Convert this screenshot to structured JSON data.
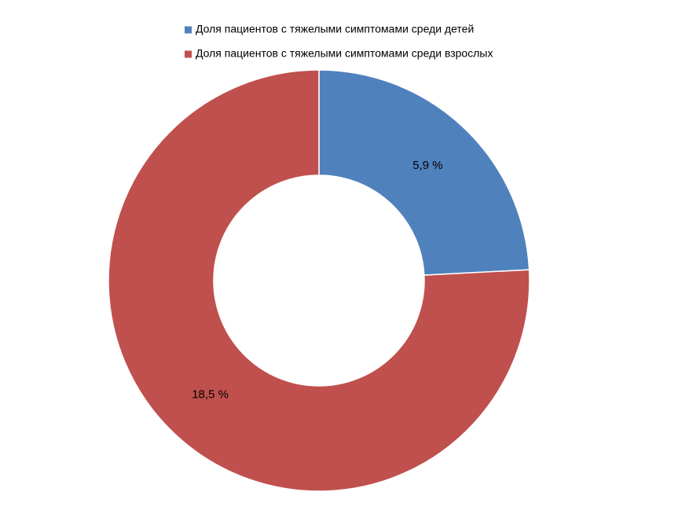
{
  "chart_data": {
    "type": "doughnut",
    "categories": [
      "Доля пациентов с тяжелыми симптомами среди детей",
      "Доля пациентов с тяжелыми симптомами среди взрослых"
    ],
    "values": [
      5.9,
      18.5
    ],
    "value_labels": [
      "5,9 %",
      "18,5 %"
    ],
    "colors": [
      "#4f81bd",
      "#c0504d"
    ],
    "legend": "top"
  }
}
